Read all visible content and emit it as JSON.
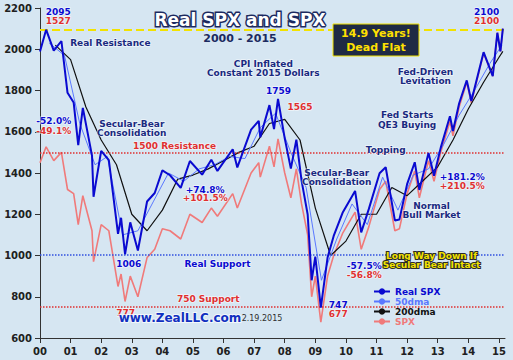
{
  "chart_data": {
    "type": "line",
    "title": "Real SPX and SPX",
    "subtitle": "2000 - 2015",
    "callout": [
      "14.9 Years!",
      "Dead Flat"
    ],
    "source": "www.ZealLLC.com",
    "date": "2.19.2015",
    "grid": false,
    "xlim": [
      2000,
      2015.2
    ],
    "xticks": [
      {
        "value": 2000,
        "label": "00"
      },
      {
        "value": 2001,
        "label": "01"
      },
      {
        "value": 2002,
        "label": "02"
      },
      {
        "value": 2003,
        "label": "03"
      },
      {
        "value": 2004,
        "label": "04"
      },
      {
        "value": 2005,
        "label": "05"
      },
      {
        "value": 2006,
        "label": "06"
      },
      {
        "value": 2007,
        "label": "07"
      },
      {
        "value": 2008,
        "label": "08"
      },
      {
        "value": 2009,
        "label": "09"
      },
      {
        "value": 2010,
        "label": "10"
      },
      {
        "value": 2011,
        "label": "11"
      },
      {
        "value": 2012,
        "label": "12"
      },
      {
        "value": 2013,
        "label": "13"
      },
      {
        "value": 2014,
        "label": "14"
      },
      {
        "value": 2015,
        "label": "15"
      }
    ],
    "ylim": [
      600,
      2200
    ],
    "yticks": [
      600,
      800,
      1000,
      1200,
      1400,
      1600,
      1800,
      2000,
      2200
    ],
    "series": [
      {
        "name": "Real SPX",
        "color": "#0a0ad0",
        "x": [
          2000.0,
          2000.2,
          2000.45,
          2000.7,
          2000.9,
          2001.1,
          2001.25,
          2001.4,
          2001.7,
          2001.75,
          2002.0,
          2002.25,
          2002.55,
          2002.65,
          2002.78,
          2002.95,
          2003.2,
          2003.5,
          2003.75,
          2004.0,
          2004.25,
          2004.6,
          2004.9,
          2005.3,
          2005.6,
          2005.8,
          2006.3,
          2006.45,
          2006.9,
          2007.15,
          2007.2,
          2007.5,
          2007.65,
          2007.78,
          2008.0,
          2008.2,
          2008.38,
          2008.55,
          2008.75,
          2008.88,
          2009.0,
          2009.18,
          2009.4,
          2009.6,
          2009.9,
          2010.3,
          2010.5,
          2010.75,
          2011.1,
          2011.3,
          2011.6,
          2011.75,
          2012.0,
          2012.25,
          2012.4,
          2012.7,
          2012.88,
          2013.1,
          2013.4,
          2013.5,
          2013.7,
          2013.95,
          2014.1,
          2014.5,
          2014.8,
          2014.95,
          2015.05,
          2015.13
        ],
        "values": [
          1989,
          2095,
          1993,
          2040,
          1789,
          1742,
          1535,
          1716,
          1484,
          1285,
          1507,
          1462,
          1105,
          1183,
          1006,
          1161,
          1024,
          1262,
          1303,
          1413,
          1389,
          1328,
          1458,
          1392,
          1464,
          1410,
          1515,
          1427,
          1610,
          1653,
          1573,
          1729,
          1613,
          1759,
          1568,
          1421,
          1562,
          1363,
          1199,
          880,
          995,
          747,
          990,
          1095,
          1210,
          1313,
          1112,
          1226,
          1399,
          1428,
          1170,
          1175,
          1346,
          1452,
          1318,
          1497,
          1387,
          1523,
          1675,
          1604,
          1737,
          1849,
          1749,
          1986,
          1870,
          2080,
          1990,
          2100
        ]
      },
      {
        "name": "50dma",
        "color": "#5a78ff",
        "x": [
          2000.3,
          2000.8,
          2001.3,
          2001.8,
          2002.2,
          2002.7,
          2003.2,
          2003.7,
          2004.2,
          2004.7,
          2005.2,
          2005.7,
          2006.2,
          2006.7,
          2007.2,
          2007.7,
          2008.2,
          2008.7,
          2009.2,
          2009.7,
          2010.2,
          2010.7,
          2011.2,
          2011.7,
          2012.2,
          2012.7,
          2013.2,
          2013.7,
          2014.2,
          2014.7,
          2015.1
        ],
        "values": [
          2030,
          1970,
          1640,
          1440,
          1480,
          1100,
          1120,
          1260,
          1400,
          1360,
          1420,
          1440,
          1480,
          1470,
          1620,
          1690,
          1500,
          1330,
          880,
          1080,
          1250,
          1150,
          1380,
          1220,
          1390,
          1420,
          1540,
          1680,
          1800,
          1930,
          2020
        ]
      },
      {
        "name": "200dma",
        "color": "#111111",
        "x": [
          2000.5,
          2001.0,
          2001.5,
          2002.0,
          2002.5,
          2003.0,
          2003.5,
          2004.0,
          2004.5,
          2005.0,
          2005.5,
          2006.0,
          2006.5,
          2007.0,
          2007.5,
          2008.0,
          2008.5,
          2009.0,
          2009.5,
          2010.0,
          2010.5,
          2011.0,
          2011.5,
          2012.0,
          2012.5,
          2013.0,
          2013.5,
          2014.0,
          2014.5,
          2015.0,
          2015.13
        ],
        "values": [
          2020,
          1950,
          1720,
          1560,
          1440,
          1200,
          1120,
          1220,
          1370,
          1390,
          1420,
          1460,
          1500,
          1530,
          1640,
          1660,
          1560,
          1230,
          1000,
          1070,
          1200,
          1200,
          1330,
          1290,
          1360,
          1430,
          1560,
          1710,
          1840,
          1960,
          1990
        ]
      },
      {
        "name": "SPX",
        "color": "#f07a7a",
        "x": [
          2000.0,
          2000.2,
          2000.45,
          2000.7,
          2000.9,
          2001.1,
          2001.25,
          2001.4,
          2001.7,
          2001.75,
          2002.0,
          2002.25,
          2002.55,
          2002.65,
          2002.78,
          2002.95,
          2003.2,
          2003.5,
          2003.75,
          2004.0,
          2004.25,
          2004.6,
          2004.9,
          2005.3,
          2005.6,
          2005.8,
          2006.3,
          2006.45,
          2006.9,
          2007.15,
          2007.2,
          2007.5,
          2007.65,
          2007.78,
          2008.0,
          2008.2,
          2008.38,
          2008.55,
          2008.75,
          2008.88,
          2009.0,
          2009.18,
          2009.4,
          2009.6,
          2009.9,
          2010.3,
          2010.5,
          2010.75,
          2011.1,
          2011.3,
          2011.6,
          2011.75,
          2012.0,
          2012.25,
          2012.4,
          2012.7,
          2012.88,
          2013.1,
          2013.4,
          2013.5,
          2013.7,
          2013.95,
          2014.1,
          2014.5,
          2014.8,
          2014.95,
          2015.05,
          2015.13
        ],
        "values": [
          1450,
          1527,
          1460,
          1500,
          1320,
          1300,
          1150,
          1290,
          1120,
          970,
          1150,
          1120,
          850,
          910,
          777,
          900,
          800,
          990,
          1030,
          1130,
          1120,
          1080,
          1200,
          1160,
          1230,
          1190,
          1300,
          1230,
          1400,
          1450,
          1380,
          1530,
          1430,
          1565,
          1400,
          1280,
          1420,
          1250,
          1100,
          800,
          900,
          677,
          900,
          1000,
          1110,
          1210,
          1030,
          1140,
          1320,
          1360,
          1120,
          1130,
          1300,
          1410,
          1280,
          1460,
          1360,
          1500,
          1650,
          1580,
          1720,
          1840,
          1740,
          1980,
          1870,
          2080,
          1990,
          2100
        ]
      }
    ],
    "reference_lines": [
      {
        "value": 2095,
        "color": "#f2e200"
      },
      {
        "value": 1500,
        "color": "#e03030"
      },
      {
        "value": 750,
        "color": "#e03030"
      },
      {
        "value": 1006,
        "color": "#3050e0"
      }
    ],
    "annotations": [
      {
        "text": "2095",
        "x": 2000.6,
        "y": 2180,
        "color": "#0a0ad0"
      },
      {
        "text": "1527",
        "x": 2000.6,
        "y": 2135,
        "color": "#e03030"
      },
      {
        "text": "Real Resistance",
        "x": 2002.3,
        "y": 2030,
        "color": "#1a2a80"
      },
      {
        "text": "CPI Inflated",
        "x": 2007.3,
        "y": 1930,
        "color": "#1a2a80"
      },
      {
        "text": "Constant 2015 Dollars",
        "x": 2007.3,
        "y": 1885,
        "color": "#1a2a80"
      },
      {
        "text": "Fed-Driven",
        "x": 2012.6,
        "y": 1890,
        "color": "#1a2a80"
      },
      {
        "text": "Levitation",
        "x": 2012.6,
        "y": 1845,
        "color": "#1a2a80"
      },
      {
        "text": "2100",
        "x": 2014.6,
        "y": 2180,
        "color": "#0a0ad0"
      },
      {
        "text": "2100",
        "x": 2014.6,
        "y": 2135,
        "color": "#e03030"
      },
      {
        "text": "-52.0%",
        "x": 2000.45,
        "y": 1650,
        "color": "#0a0ad0"
      },
      {
        "text": "-49.1%",
        "x": 2000.45,
        "y": 1605,
        "color": "#e03030"
      },
      {
        "text": "Secular-Bear",
        "x": 2003.0,
        "y": 1640,
        "color": "#1a2a80"
      },
      {
        "text": "Consolidation",
        "x": 2003.0,
        "y": 1595,
        "color": "#1a2a80"
      },
      {
        "text": "1500 Resistance",
        "x": 2004.4,
        "y": 1530,
        "color": "#e03030"
      },
      {
        "text": "1759",
        "x": 2007.8,
        "y": 1800,
        "color": "#0a0ad0"
      },
      {
        "text": "1565",
        "x": 2008.5,
        "y": 1720,
        "color": "#e03030"
      },
      {
        "text": "Fed Starts",
        "x": 2012.0,
        "y": 1680,
        "color": "#1a2a80"
      },
      {
        "text": "QE3 Buying",
        "x": 2012.0,
        "y": 1635,
        "color": "#1a2a80"
      },
      {
        "text": "+74.8%",
        "x": 2005.4,
        "y": 1320,
        "color": "#0a0ad0"
      },
      {
        "text": "+101.5%",
        "x": 2005.4,
        "y": 1278,
        "color": "#e03030"
      },
      {
        "text": "Secular-Bear",
        "x": 2009.7,
        "y": 1400,
        "color": "#1a2a80"
      },
      {
        "text": "Consolidation",
        "x": 2009.7,
        "y": 1355,
        "color": "#1a2a80"
      },
      {
        "text": "Topping",
        "x": 2011.3,
        "y": 1510,
        "color": "#1a2a80"
      },
      {
        "text": "+181.2%",
        "x": 2013.8,
        "y": 1380,
        "color": "#0a0ad0"
      },
      {
        "text": "+210.5%",
        "x": 2013.8,
        "y": 1335,
        "color": "#e03030"
      },
      {
        "text": "Normal",
        "x": 2012.8,
        "y": 1240,
        "color": "#1a2a80"
      },
      {
        "text": "Bull Market",
        "x": 2012.8,
        "y": 1195,
        "color": "#1a2a80"
      },
      {
        "text": "1006",
        "x": 2002.9,
        "y": 960,
        "color": "#0a0ad0"
      },
      {
        "text": "777",
        "x": 2002.8,
        "y": 720,
        "color": "#e03030"
      },
      {
        "text": "Real Support",
        "x": 2005.8,
        "y": 960,
        "color": "#0a0ad0"
      },
      {
        "text": "-57.5%",
        "x": 2010.6,
        "y": 950,
        "color": "#0a0ad0"
      },
      {
        "text": "-56.8%",
        "x": 2010.6,
        "y": 905,
        "color": "#e03030"
      },
      {
        "text": "Long Way Down If",
        "x": 2012.8,
        "y": 1000,
        "color": "#f2e200"
      },
      {
        "text": "Secular Bear Intact",
        "x": 2012.8,
        "y": 955,
        "color": "#f2e200"
      },
      {
        "text": "750 Support",
        "x": 2005.5,
        "y": 790,
        "color": "#e03030"
      },
      {
        "text": "747",
        "x": 2009.75,
        "y": 760,
        "color": "#0a0ad0"
      },
      {
        "text": "677",
        "x": 2009.75,
        "y": 715,
        "color": "#e03030"
      }
    ]
  }
}
